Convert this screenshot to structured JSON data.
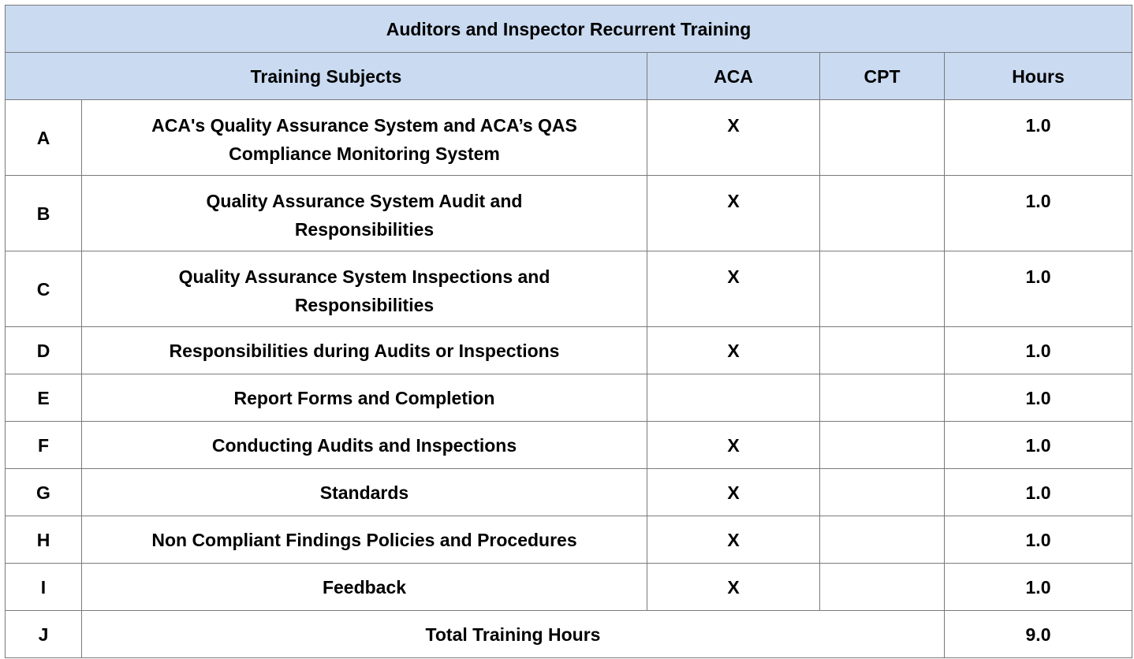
{
  "table": {
    "title": "Auditors and Inspector Recurrent Training",
    "headers": {
      "subjects": "Training Subjects",
      "aca": "ACA",
      "cpt": "CPT",
      "hours": "Hours"
    },
    "rows": [
      {
        "letter": "A",
        "subject_line1": "ACA's Quality Assurance System and ACA’s QAS",
        "subject_line2": "Compliance Monitoring System",
        "aca": "X",
        "cpt": "",
        "hours": "1.0"
      },
      {
        "letter": "B",
        "subject_line1": "Quality Assurance System Audit and",
        "subject_line2": "Responsibilities",
        "aca": "X",
        "cpt": "",
        "hours": "1.0"
      },
      {
        "letter": "C",
        "subject_line1": "Quality Assurance System Inspections and",
        "subject_line2": "Responsibilities",
        "aca": "X",
        "cpt": "",
        "hours": "1.0"
      },
      {
        "letter": "D",
        "subject": "Responsibilities during Audits or Inspections",
        "aca": "X",
        "cpt": "",
        "hours": "1.0"
      },
      {
        "letter": "E",
        "subject": "Report Forms and Completion",
        "aca": "",
        "cpt": "",
        "hours": "1.0"
      },
      {
        "letter": "F",
        "subject": "Conducting Audits and Inspections",
        "aca": "X",
        "cpt": "",
        "hours": "1.0"
      },
      {
        "letter": "G",
        "subject": "Standards",
        "aca": "X",
        "cpt": "",
        "hours": "1.0"
      },
      {
        "letter": "H",
        "subject": "Non Compliant Findings Policies and Procedures",
        "aca": "X",
        "cpt": "",
        "hours": "1.0"
      },
      {
        "letter": "I",
        "subject": "Feedback",
        "aca": "X",
        "cpt": "",
        "hours": "1.0"
      }
    ],
    "total": {
      "letter": "J",
      "label": "Total Training Hours",
      "hours": "9.0"
    }
  },
  "colors": {
    "header_background": "#c9daf1",
    "border": "#7a7a7a",
    "text": "#000000"
  }
}
